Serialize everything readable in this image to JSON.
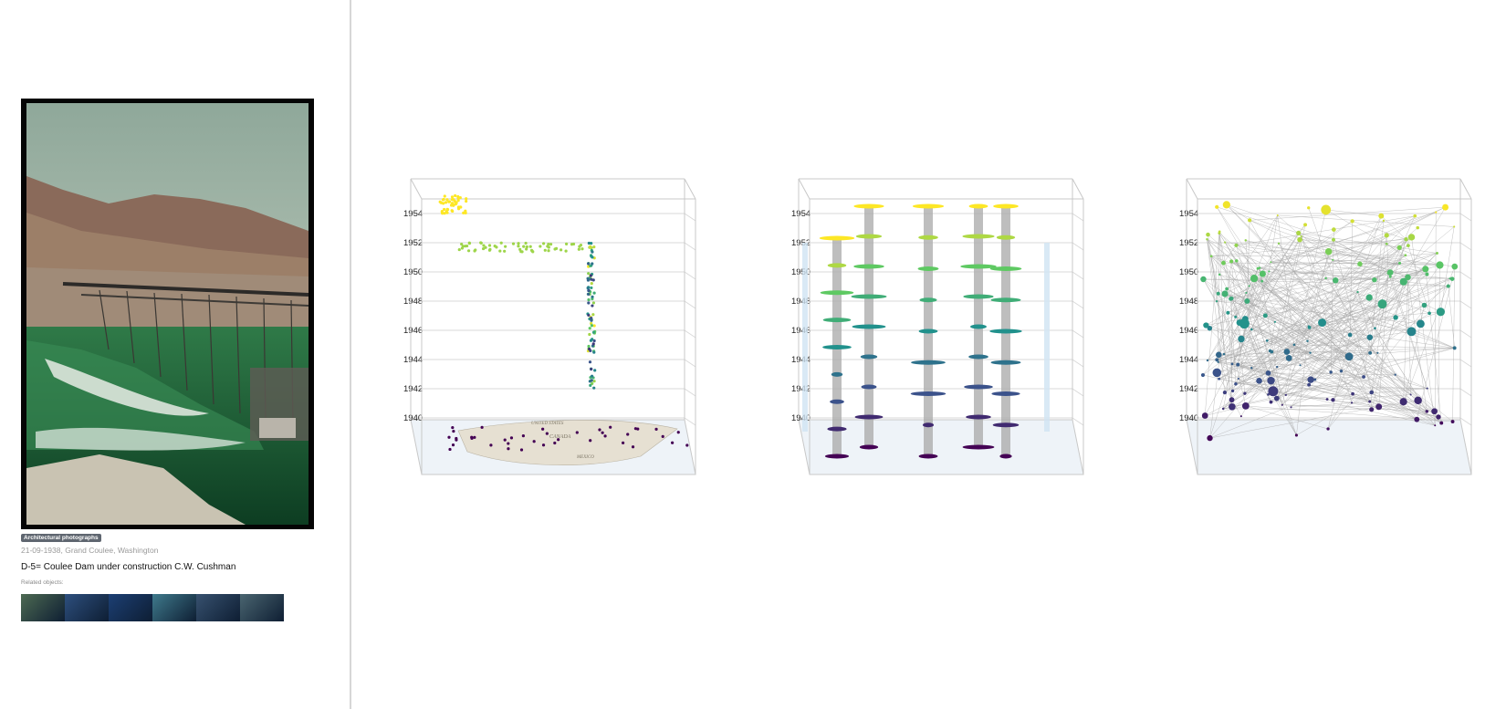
{
  "photo": {
    "category": "Architectural photographs",
    "meta": "21-09-1938, Grand Coulee, Washington",
    "title": "D-5= Coulee Dam under construction C.W. Cushman"
  },
  "related": {
    "label": "Related objects:",
    "thumbnails": [
      {
        "name": "dam-thumbnail",
        "color": "#4d6a52"
      },
      {
        "name": "blue-texture-thumbnail",
        "color": "#2d4f7e"
      },
      {
        "name": "dark-ocean-thumbnail",
        "color": "#1c3f74"
      },
      {
        "name": "lake-landscape-thumbnail",
        "color": "#3f7a8c"
      },
      {
        "name": "river-landscape-thumbnail",
        "color": "#37516f"
      },
      {
        "name": "valley-thumbnail",
        "color": "#4a6570"
      }
    ]
  },
  "panels": {
    "year_ticks": [
      "1940",
      "1942",
      "1944",
      "1946",
      "1948",
      "1950",
      "1952",
      "1954"
    ],
    "map_labels": [
      "CANADA",
      "UNITED STATES",
      "MEXICO"
    ]
  },
  "colors": {
    "year_1940": "#440154",
    "year_1946": "#21908d",
    "year_1954": "#fde725",
    "edges": "#a8a8a8",
    "box": "#c8c8c8",
    "floor": "#eef3f8"
  }
}
